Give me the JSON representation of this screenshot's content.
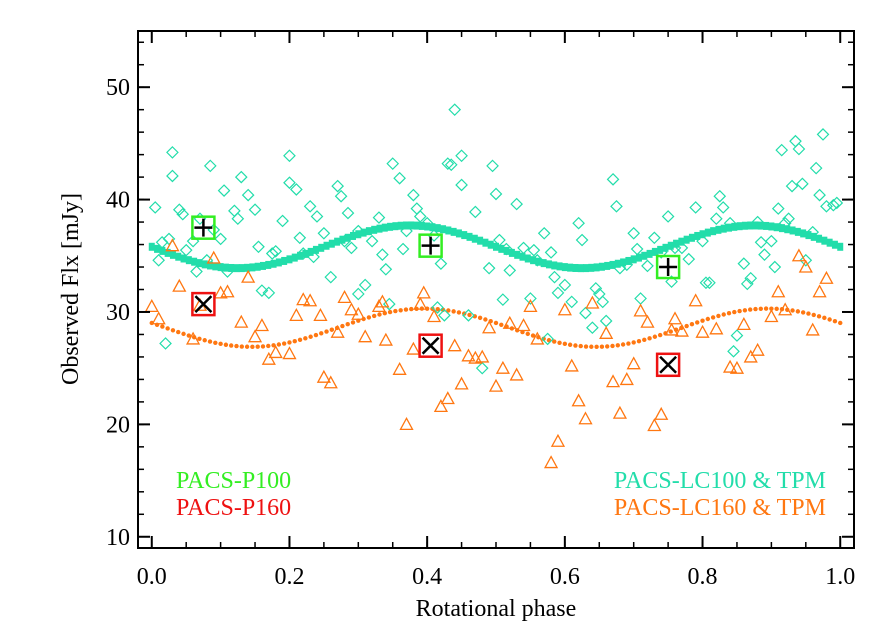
{
  "chart_data": {
    "type": "scatter",
    "xlabel": "Rotational phase",
    "ylabel": "Observed Flx [mJy]",
    "xlim": [
      -0.02,
      1.02
    ],
    "ylim": [
      9,
      55
    ],
    "x_ticks": [
      "0.0",
      "0.2",
      "0.4",
      "0.6",
      "0.8",
      "1.0"
    ],
    "y_ticks": [
      "10",
      "20",
      "30",
      "40",
      "50"
    ],
    "x_tick_values": [
      0.0,
      0.2,
      0.4,
      0.6,
      0.8,
      1.0
    ],
    "y_tick_values": [
      10,
      20,
      30,
      40,
      50
    ],
    "grid": false,
    "legend": [
      {
        "label": "PACS-P100",
        "color": "#33ee22",
        "position": "bottom-left"
      },
      {
        "label": "PACS-P160",
        "color": "#ee1111",
        "position": "bottom-left"
      },
      {
        "label": "PACS-LC100 & TPM",
        "color": "#22ddaa",
        "position": "bottom-right"
      },
      {
        "label": "PACS-LC160 & TPM",
        "color": "#ff7711",
        "position": "bottom-right"
      }
    ],
    "series": [
      {
        "name": "PACS-LC100",
        "marker": "diamond",
        "color": "#22ddaa",
        "points": [
          [
            0.005,
            39.3
          ],
          [
            0.01,
            34.6
          ],
          [
            0.015,
            36.2
          ],
          [
            0.02,
            27.2
          ],
          [
            0.025,
            36.5
          ],
          [
            0.03,
            42.1
          ],
          [
            0.03,
            44.2
          ],
          [
            0.04,
            39.1
          ],
          [
            0.045,
            38.7
          ],
          [
            0.05,
            35.5
          ],
          [
            0.06,
            36.3
          ],
          [
            0.065,
            33.6
          ],
          [
            0.07,
            38.3
          ],
          [
            0.08,
            34.6
          ],
          [
            0.085,
            43.0
          ],
          [
            0.09,
            37.3
          ],
          [
            0.1,
            36.5
          ],
          [
            0.105,
            40.8
          ],
          [
            0.11,
            33.6
          ],
          [
            0.12,
            39.0
          ],
          [
            0.125,
            38.3
          ],
          [
            0.13,
            42.0
          ],
          [
            0.14,
            40.4
          ],
          [
            0.15,
            39.1
          ],
          [
            0.155,
            35.8
          ],
          [
            0.16,
            31.9
          ],
          [
            0.17,
            31.7
          ],
          [
            0.175,
            35.2
          ],
          [
            0.18,
            35.4
          ],
          [
            0.19,
            38.1
          ],
          [
            0.2,
            41.5
          ],
          [
            0.2,
            43.9
          ],
          [
            0.21,
            40.9
          ],
          [
            0.215,
            36.6
          ],
          [
            0.22,
            35.2
          ],
          [
            0.23,
            39.4
          ],
          [
            0.235,
            34.9
          ],
          [
            0.24,
            38.5
          ],
          [
            0.25,
            37.0
          ],
          [
            0.26,
            33.1
          ],
          [
            0.27,
            41.2
          ],
          [
            0.275,
            40.3
          ],
          [
            0.28,
            36.3
          ],
          [
            0.285,
            38.8
          ],
          [
            0.29,
            35.7
          ],
          [
            0.3,
            37.2
          ],
          [
            0.3,
            31.6
          ],
          [
            0.31,
            32.4
          ],
          [
            0.32,
            36.3
          ],
          [
            0.33,
            38.4
          ],
          [
            0.335,
            35.1
          ],
          [
            0.34,
            33.8
          ],
          [
            0.345,
            30.7
          ],
          [
            0.35,
            43.2
          ],
          [
            0.36,
            41.9
          ],
          [
            0.365,
            35.6
          ],
          [
            0.37,
            37.2
          ],
          [
            0.38,
            40.4
          ],
          [
            0.385,
            39.2
          ],
          [
            0.39,
            38.5
          ],
          [
            0.4,
            37.9
          ],
          [
            0.41,
            36.8
          ],
          [
            0.415,
            30.4
          ],
          [
            0.42,
            34.3
          ],
          [
            0.425,
            29.7
          ],
          [
            0.43,
            43.2
          ],
          [
            0.435,
            43.1
          ],
          [
            0.44,
            48.0
          ],
          [
            0.45,
            41.3
          ],
          [
            0.45,
            43.9
          ],
          [
            0.46,
            29.7
          ],
          [
            0.47,
            38.9
          ],
          [
            0.48,
            25.0
          ],
          [
            0.49,
            33.9
          ],
          [
            0.495,
            43.0
          ],
          [
            0.5,
            40.5
          ],
          [
            0.505,
            36.4
          ],
          [
            0.51,
            31.1
          ],
          [
            0.515,
            35.6
          ],
          [
            0.52,
            33.7
          ],
          [
            0.53,
            39.6
          ],
          [
            0.54,
            35.7
          ],
          [
            0.55,
            31.2
          ],
          [
            0.555,
            35.5
          ],
          [
            0.56,
            34.6
          ],
          [
            0.57,
            37.0
          ],
          [
            0.575,
            27.6
          ],
          [
            0.58,
            35.3
          ],
          [
            0.585,
            33.1
          ],
          [
            0.59,
            31.7
          ],
          [
            0.6,
            32.4
          ],
          [
            0.61,
            30.9
          ],
          [
            0.62,
            37.9
          ],
          [
            0.625,
            36.4
          ],
          [
            0.63,
            29.9
          ],
          [
            0.64,
            28.6
          ],
          [
            0.645,
            32.1
          ],
          [
            0.65,
            31.6
          ],
          [
            0.655,
            30.9
          ],
          [
            0.66,
            29.2
          ],
          [
            0.67,
            41.8
          ],
          [
            0.675,
            39.4
          ],
          [
            0.68,
            33.9
          ],
          [
            0.69,
            34.2
          ],
          [
            0.7,
            37.0
          ],
          [
            0.705,
            35.6
          ],
          [
            0.71,
            31.2
          ],
          [
            0.72,
            34.1
          ],
          [
            0.73,
            36.6
          ],
          [
            0.74,
            35.3
          ],
          [
            0.75,
            38.5
          ],
          [
            0.755,
            32.7
          ],
          [
            0.76,
            35.7
          ],
          [
            0.77,
            35.7
          ],
          [
            0.78,
            34.7
          ],
          [
            0.79,
            39.3
          ],
          [
            0.8,
            36.3
          ],
          [
            0.805,
            32.6
          ],
          [
            0.81,
            32.6
          ],
          [
            0.82,
            38.3
          ],
          [
            0.825,
            40.3
          ],
          [
            0.83,
            39.3
          ],
          [
            0.84,
            37.9
          ],
          [
            0.845,
            26.5
          ],
          [
            0.85,
            27.9
          ],
          [
            0.86,
            34.3
          ],
          [
            0.865,
            32.5
          ],
          [
            0.87,
            33.0
          ],
          [
            0.88,
            38.0
          ],
          [
            0.885,
            36.2
          ],
          [
            0.89,
            35.1
          ],
          [
            0.9,
            36.3
          ],
          [
            0.905,
            34.0
          ],
          [
            0.91,
            39.2
          ],
          [
            0.915,
            44.4
          ],
          [
            0.92,
            37.9
          ],
          [
            0.925,
            38.3
          ],
          [
            0.93,
            41.2
          ],
          [
            0.935,
            45.2
          ],
          [
            0.94,
            44.5
          ],
          [
            0.945,
            41.4
          ],
          [
            0.95,
            34.6
          ],
          [
            0.96,
            37.1
          ],
          [
            0.965,
            42.8
          ],
          [
            0.97,
            40.4
          ],
          [
            0.975,
            45.8
          ],
          [
            0.98,
            39.4
          ],
          [
            0.99,
            39.5
          ],
          [
            0.995,
            39.7
          ]
        ]
      },
      {
        "name": "PACS-LC160",
        "marker": "triangle",
        "color": "#ff7711",
        "points": [
          [
            0.0,
            30.5
          ],
          [
            0.01,
            29.4
          ],
          [
            0.03,
            35.9
          ],
          [
            0.04,
            32.3
          ],
          [
            0.06,
            27.6
          ],
          [
            0.07,
            30.6
          ],
          [
            0.09,
            34.8
          ],
          [
            0.1,
            31.7
          ],
          [
            0.11,
            31.8
          ],
          [
            0.13,
            29.1
          ],
          [
            0.14,
            33.1
          ],
          [
            0.15,
            27.8
          ],
          [
            0.16,
            28.8
          ],
          [
            0.17,
            25.8
          ],
          [
            0.18,
            26.4
          ],
          [
            0.2,
            26.3
          ],
          [
            0.21,
            29.7
          ],
          [
            0.22,
            31.1
          ],
          [
            0.23,
            31.0
          ],
          [
            0.245,
            29.7
          ],
          [
            0.25,
            24.2
          ],
          [
            0.26,
            23.7
          ],
          [
            0.27,
            28.2
          ],
          [
            0.28,
            31.3
          ],
          [
            0.29,
            30.2
          ],
          [
            0.3,
            29.8
          ],
          [
            0.31,
            27.8
          ],
          [
            0.33,
            30.5
          ],
          [
            0.335,
            30.9
          ],
          [
            0.34,
            27.5
          ],
          [
            0.36,
            24.9
          ],
          [
            0.37,
            20.0
          ],
          [
            0.38,
            26.7
          ],
          [
            0.39,
            30.7
          ],
          [
            0.395,
            31.7
          ],
          [
            0.41,
            29.6
          ],
          [
            0.42,
            21.6
          ],
          [
            0.43,
            22.3
          ],
          [
            0.44,
            27.0
          ],
          [
            0.45,
            23.6
          ],
          [
            0.46,
            26.1
          ],
          [
            0.47,
            25.9
          ],
          [
            0.48,
            26.0
          ],
          [
            0.49,
            28.6
          ],
          [
            0.5,
            23.4
          ],
          [
            0.51,
            25.0
          ],
          [
            0.52,
            29.0
          ],
          [
            0.53,
            24.4
          ],
          [
            0.54,
            28.8
          ],
          [
            0.55,
            30.5
          ],
          [
            0.56,
            27.6
          ],
          [
            0.58,
            16.6
          ],
          [
            0.59,
            18.5
          ],
          [
            0.6,
            30.2
          ],
          [
            0.61,
            25.2
          ],
          [
            0.62,
            22.1
          ],
          [
            0.63,
            20.5
          ],
          [
            0.64,
            30.8
          ],
          [
            0.66,
            28.1
          ],
          [
            0.67,
            23.8
          ],
          [
            0.68,
            21.0
          ],
          [
            0.69,
            24.0
          ],
          [
            0.7,
            25.4
          ],
          [
            0.71,
            30.1
          ],
          [
            0.72,
            29.1
          ],
          [
            0.73,
            19.9
          ],
          [
            0.74,
            20.9
          ],
          [
            0.755,
            28.4
          ],
          [
            0.76,
            29.4
          ],
          [
            0.77,
            28.3
          ],
          [
            0.79,
            31.0
          ],
          [
            0.8,
            28.2
          ],
          [
            0.82,
            28.5
          ],
          [
            0.84,
            25.1
          ],
          [
            0.85,
            25.0
          ],
          [
            0.86,
            28.9
          ],
          [
            0.87,
            26.0
          ],
          [
            0.88,
            26.6
          ],
          [
            0.9,
            29.6
          ],
          [
            0.91,
            31.8
          ],
          [
            0.92,
            30.2
          ],
          [
            0.94,
            35.0
          ],
          [
            0.95,
            34.0
          ],
          [
            0.96,
            28.4
          ],
          [
            0.97,
            31.8
          ],
          [
            0.98,
            33.0
          ]
        ]
      },
      {
        "name": "PACS-P100",
        "marker": "square-plus",
        "color": "#33ee22",
        "points": [
          [
            0.075,
            37.5
          ],
          [
            0.405,
            35.9
          ],
          [
            0.75,
            34.0
          ]
        ]
      },
      {
        "name": "PACS-P160",
        "marker": "square-cross",
        "color": "#ee1111",
        "points": [
          [
            0.075,
            30.7
          ],
          [
            0.405,
            27.0
          ],
          [
            0.75,
            25.3
          ]
        ]
      }
    ],
    "model_curves": [
      {
        "name": "PACS-LC100 & TPM",
        "color": "#22ddaa",
        "offset": 35.8,
        "amplitude": 1.9,
        "phase_shift": 0.375
      },
      {
        "name": "PACS-LC160 & TPM",
        "color": "#ff7711",
        "offset": 28.6,
        "amplitude": 1.7,
        "phase_shift": 0.395
      }
    ]
  }
}
